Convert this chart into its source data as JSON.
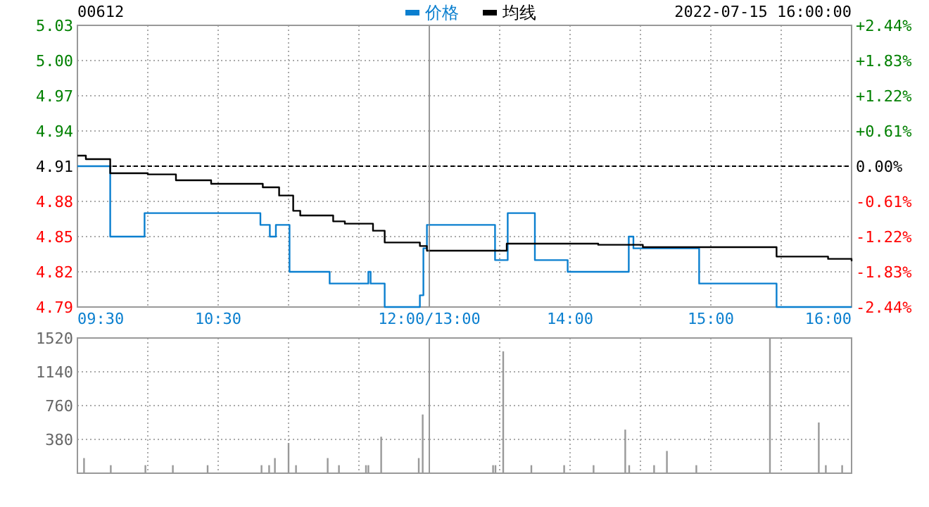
{
  "chart_data": [
    {
      "type": "step",
      "title": "00612",
      "annotations": [
        "2022-07-15 16:00:00"
      ],
      "legend": "top",
      "grid": true,
      "xlim": [
        9.5,
        12
      ],
      "xticks": [
        {
          "value": 9.5,
          "label": "09:30"
        },
        {
          "value": 10,
          "label": null
        },
        {
          "value": 10.5,
          "label": "10:30"
        },
        {
          "value": 11,
          "label": null
        },
        {
          "value": 11.5,
          "label": null
        },
        {
          "value": 12,
          "label": "12:00/13:00"
        }
      ],
      "ylim": [
        4.79,
        5.03
      ],
      "yticks": [
        {
          "value": 4.79,
          "label": "4.79"
        },
        {
          "value": 4.82,
          "label": "4.82"
        },
        {
          "value": 4.85,
          "label": "4.85"
        },
        {
          "value": 4.88,
          "label": "4.88"
        },
        {
          "value": 4.91,
          "label": "4.91"
        },
        {
          "value": 4.94,
          "label": "4.94"
        },
        {
          "value": 4.97,
          "label": "4.97"
        },
        {
          "value": 5.0,
          "label": "5.00"
        },
        {
          "value": 5.03,
          "label": "5.03"
        }
      ],
      "ref_lines": [
        {
          "axis": "y",
          "value": 4.91,
          "color": "#000000",
          "line_style": "dashed"
        }
      ],
      "series": [
        {
          "name": "价格",
          "color": "#0a7fcf",
          "x": [
            9.5,
            9.733,
            9.977,
            10.8,
            10.867,
            10.91,
            11.007,
            11.292,
            11.567,
            11.583,
            11.683,
            11.933,
            11.958,
            11.983,
            12
          ],
          "values": [
            4.91,
            4.85,
            4.87,
            4.86,
            4.85,
            4.86,
            4.82,
            4.81,
            4.82,
            4.81,
            4.79,
            4.8,
            4.84,
            4.86,
            4.86
          ]
        },
        {
          "name": "均线",
          "color": "#000000",
          "x": [
            9.5,
            9.56,
            9.733,
            10,
            10.2,
            10.45,
            10.817,
            10.933,
            11.033,
            11.083,
            11.317,
            11.4,
            11.6,
            11.683,
            11.933,
            11.983,
            12
          ],
          "values": [
            4.919,
            4.916,
            4.904,
            4.903,
            4.898,
            4.895,
            4.892,
            4.885,
            4.872,
            4.868,
            4.863,
            4.861,
            4.855,
            4.845,
            4.842,
            4.838,
            4.838
          ]
        }
      ]
    },
    {
      "type": "step",
      "grid": true,
      "xlim": [
        13,
        16
      ],
      "xticks": [
        {
          "value": 13,
          "label": null
        },
        {
          "value": 13.5,
          "label": null
        },
        {
          "value": 14,
          "label": "14:00"
        },
        {
          "value": 14.5,
          "label": null
        },
        {
          "value": 15,
          "label": "15:00"
        },
        {
          "value": 15.5,
          "label": null
        },
        {
          "value": 16,
          "label": "16:00"
        }
      ],
      "tick_labels": "x",
      "ylim": [
        4.79,
        5.03
      ],
      "yticks": [
        4.79,
        4.82,
        4.85,
        4.88,
        4.91,
        4.94,
        4.97,
        5.0,
        5.03
      ],
      "y2lim": [
        -2.44,
        2.44
      ],
      "y2ticks": [
        {
          "value": -2.44,
          "label": "-2.44%"
        },
        {
          "value": -1.83,
          "label": "-1.83%"
        },
        {
          "value": -1.22,
          "label": "-1.22%"
        },
        {
          "value": -0.61,
          "label": "-0.61%"
        },
        {
          "value": 0,
          "label": "0.00%"
        },
        {
          "value": 0.61,
          "label": "+0.61%"
        },
        {
          "value": 1.22,
          "label": "+1.22%"
        },
        {
          "value": 1.83,
          "label": "+1.83%"
        },
        {
          "value": 2.44,
          "label": "+2.44%"
        }
      ],
      "ref_lines": [
        {
          "axis": "y",
          "value": 4.91,
          "color": "#000000",
          "line_style": "dashed"
        }
      ],
      "series": [
        {
          "color": "#0a7fcf",
          "x": [
            13,
            13.467,
            13.557,
            13.75,
            13.983,
            14.417,
            14.45,
            14.917,
            15.467,
            16
          ],
          "values": [
            4.86,
            4.83,
            4.87,
            4.83,
            4.82,
            4.85,
            4.84,
            4.81,
            4.79,
            4.79
          ]
        },
        {
          "color": "#000000",
          "x": [
            13,
            13.55,
            14.2,
            14.517,
            15.467,
            15.833,
            16
          ],
          "values": [
            4.838,
            4.844,
            4.843,
            4.841,
            4.833,
            4.831,
            4.829
          ]
        }
      ]
    },
    {
      "type": "bar",
      "grid": true,
      "tick_labels": "y",
      "color": "#999999",
      "xlim": [
        9.5,
        12
      ],
      "xticks": [
        {
          "value": 9.5,
          "label": null
        },
        {
          "value": 10,
          "label": null
        },
        {
          "value": 10.5,
          "label": null
        },
        {
          "value": 11,
          "label": null
        },
        {
          "value": 11.5,
          "label": null
        },
        {
          "value": 12,
          "label": null
        }
      ],
      "ylim": [
        0,
        1520
      ],
      "yticks": [
        380,
        760,
        1140,
        1520
      ],
      "x": [
        9.547,
        9.737,
        9.983,
        10.178,
        10.425,
        10.808,
        10.862,
        10.903,
        11,
        11.053,
        11.278,
        11.358,
        11.55,
        11.567,
        11.658,
        11.925,
        11.953
      ],
      "values": [
        170,
        90,
        90,
        90,
        90,
        90,
        90,
        170,
        340,
        90,
        170,
        90,
        90,
        90,
        410,
        170,
        660
      ]
    },
    {
      "type": "bar",
      "grid": true,
      "tick_labels": false,
      "color": "#999999",
      "xlim": [
        13,
        16
      ],
      "xticks": [
        {
          "value": 13,
          "label": null
        },
        {
          "value": 13.5,
          "label": null
        },
        {
          "value": 14,
          "label": null
        },
        {
          "value": 14.5,
          "label": null
        },
        {
          "value": 15,
          "label": null
        },
        {
          "value": 15.5,
          "label": null
        },
        {
          "value": 16,
          "label": null
        }
      ],
      "ylim": [
        0,
        1520
      ],
      "yticks": [
        380,
        760,
        1140,
        1520
      ],
      "x": [
        13.453,
        13.47,
        13.525,
        13.725,
        13.958,
        14.167,
        14.392,
        14.42,
        14.597,
        14.688,
        14.897,
        15.42,
        15.767,
        15.817,
        15.933
      ],
      "values": [
        90,
        90,
        1370,
        90,
        90,
        90,
        490,
        90,
        90,
        250,
        90,
        1520,
        570,
        90,
        90
      ]
    }
  ]
}
